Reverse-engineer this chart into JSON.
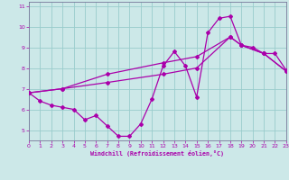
{
  "xlabel": "Windchill (Refroidissement éolien,°C)",
  "bg_color": "#cce8e8",
  "line_color": "#aa00aa",
  "grid_color": "#99cccc",
  "xlim": [
    0,
    23
  ],
  "ylim": [
    4.5,
    11.2
  ],
  "xticks": [
    0,
    1,
    2,
    3,
    4,
    5,
    6,
    7,
    8,
    9,
    10,
    11,
    12,
    13,
    14,
    15,
    16,
    17,
    18,
    19,
    20,
    21,
    22,
    23
  ],
  "yticks": [
    5,
    6,
    7,
    8,
    9,
    10,
    11
  ],
  "line1_x": [
    0,
    1,
    2,
    3,
    4,
    5,
    6,
    7,
    8,
    9,
    10,
    11,
    12,
    13,
    14,
    15,
    16,
    17,
    18,
    19,
    20,
    21,
    22,
    23
  ],
  "line1_y": [
    6.8,
    6.4,
    6.2,
    6.1,
    6.0,
    5.5,
    5.7,
    5.2,
    4.7,
    4.7,
    5.3,
    6.5,
    8.1,
    8.8,
    8.1,
    6.6,
    9.7,
    10.4,
    10.5,
    9.1,
    9.0,
    8.7,
    8.7,
    7.9
  ],
  "line2_x": [
    0,
    3,
    7,
    12,
    15,
    18,
    19,
    21,
    23
  ],
  "line2_y": [
    6.8,
    7.0,
    7.3,
    7.7,
    8.0,
    9.5,
    9.1,
    8.7,
    7.85
  ],
  "line3_x": [
    0,
    3,
    7,
    12,
    15,
    18,
    19,
    21,
    23
  ],
  "line3_y": [
    6.8,
    7.0,
    7.7,
    8.25,
    8.55,
    9.5,
    9.1,
    8.7,
    7.85
  ]
}
